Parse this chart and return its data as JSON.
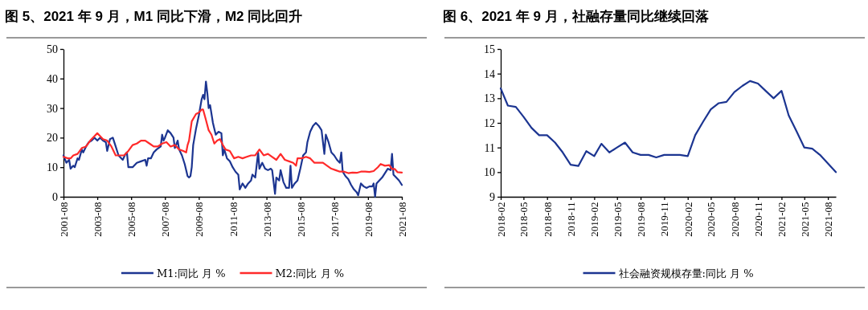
{
  "chart_data": [
    {
      "type": "line",
      "title": "图 5、2021 年 9 月，M1 同比下滑，M2 同比回升",
      "legend": "bottom",
      "grid": false,
      "marker": "none",
      "line_style": "solid",
      "xlim": [
        "2001-08",
        "2021-08"
      ],
      "xticks": [
        "2001-08",
        "2003-08",
        "2005-08",
        "2007-08",
        "2009-08",
        "2011-08",
        "2013-08",
        "2015-08",
        "2017-08",
        "2019-08",
        "2021-08"
      ],
      "ylim": [
        0,
        50
      ],
      "yticks": [
        0,
        10,
        20,
        30,
        40,
        50
      ],
      "series": [
        {
          "name": "M1:同比 月 %",
          "color": "#1c3591",
          "x": [
            "2001-08",
            "2001-10",
            "2001-12",
            "2002-01",
            "2002-03",
            "2002-04",
            "2002-06",
            "2002-07",
            "2002-09",
            "2002-10",
            "2002-12",
            "2003-02",
            "2003-04",
            "2003-06",
            "2003-08",
            "2003-10",
            "2003-12",
            "2004-02",
            "2004-03",
            "2004-05",
            "2004-07",
            "2004-09",
            "2004-11",
            "2005-01",
            "2005-02",
            "2005-04",
            "2005-05",
            "2005-06",
            "2005-09",
            "2005-12",
            "2006-03",
            "2006-06",
            "2006-07",
            "2006-08",
            "2006-10",
            "2006-12",
            "2007-02",
            "2007-05",
            "2007-06",
            "2007-07",
            "2007-08",
            "2007-10",
            "2007-12",
            "2008-02",
            "2008-03",
            "2008-05",
            "2008-06",
            "2008-08",
            "2008-10",
            "2008-12",
            "2009-01",
            "2009-02",
            "2009-03",
            "2009-04",
            "2009-06",
            "2009-08",
            "2009-10",
            "2009-11",
            "2009-12",
            "2010-01",
            "2010-02",
            "2010-03",
            "2010-04",
            "2010-06",
            "2010-08",
            "2010-10",
            "2010-12",
            "2011-01",
            "2011-02",
            "2011-04",
            "2011-06",
            "2011-08",
            "2011-10",
            "2011-12",
            "2012-01",
            "2012-03",
            "2012-05",
            "2012-07",
            "2012-09",
            "2012-10",
            "2012-12",
            "2013-02",
            "2013-03",
            "2013-05",
            "2013-07",
            "2013-09",
            "2013-11",
            "2013-12",
            "2014-02",
            "2014-03",
            "2014-05",
            "2014-06",
            "2014-08",
            "2014-10",
            "2014-12",
            "2015-01",
            "2015-02",
            "2015-04",
            "2015-06",
            "2015-08",
            "2015-10",
            "2015-12",
            "2016-01",
            "2016-03",
            "2016-05",
            "2016-07",
            "2016-09",
            "2016-11",
            "2017-01",
            "2017-02",
            "2017-04",
            "2017-06",
            "2017-08",
            "2017-10",
            "2017-12",
            "2018-01",
            "2018-02",
            "2018-04",
            "2018-06",
            "2018-08",
            "2018-10",
            "2018-12",
            "2019-01",
            "2019-03",
            "2019-05",
            "2019-07",
            "2019-09",
            "2019-11",
            "2019-12",
            "2020-01",
            "2020-02",
            "2020-04",
            "2020-06",
            "2020-08",
            "2020-10",
            "2020-12",
            "2021-01",
            "2021-02",
            "2021-04",
            "2021-06",
            "2021-08"
          ],
          "values": [
            14,
            11.5,
            12.5,
            9.5,
            10.5,
            10,
            13,
            12.5,
            16,
            15,
            17,
            18.5,
            19,
            20,
            19,
            20,
            19,
            18.5,
            15.5,
            19.5,
            20,
            17,
            14,
            13,
            12.5,
            14.5,
            15,
            10,
            10,
            11.5,
            12,
            12.5,
            10.5,
            13,
            13,
            15,
            16,
            17,
            21,
            19,
            20,
            22.5,
            21.5,
            20,
            16.5,
            19,
            16,
            14,
            11,
            7,
            6.5,
            7,
            10,
            17.5,
            23,
            27.5,
            33,
            34.5,
            33,
            39,
            35,
            30,
            31,
            25,
            21,
            22,
            21.5,
            14,
            16,
            13,
            12,
            10,
            8.5,
            7.5,
            2.5,
            4.5,
            3,
            4.5,
            5.5,
            7.5,
            6.5,
            15,
            9.5,
            11.5,
            9.5,
            9,
            9.5,
            9,
            1,
            6.5,
            5.5,
            9,
            5,
            3,
            3,
            10.5,
            3,
            4.5,
            5.5,
            9.5,
            14,
            15,
            18.5,
            22,
            24,
            25,
            24,
            22.5,
            14.5,
            21,
            18.5,
            15,
            14,
            12.5,
            11.5,
            15,
            8.5,
            7,
            6,
            4,
            2.5,
            1.5,
            0.5,
            4.5,
            3.5,
            3,
            3.5,
            3.5,
            4.5,
            0,
            4.5,
            5.5,
            6.5,
            8,
            9.5,
            9,
            14.5,
            7.5,
            6.5,
            5.5,
            4
          ]
        },
        {
          "name": "M2:同比 月 %",
          "color": "#ff2a2a",
          "x": [
            "2001-08",
            "2001-11",
            "2002-01",
            "2002-03",
            "2002-06",
            "2002-09",
            "2002-12",
            "2003-03",
            "2003-06",
            "2003-08",
            "2003-10",
            "2003-12",
            "2004-03",
            "2004-06",
            "2004-09",
            "2004-12",
            "2005-03",
            "2005-06",
            "2005-09",
            "2005-12",
            "2006-03",
            "2006-06",
            "2006-09",
            "2006-12",
            "2007-03",
            "2007-06",
            "2007-09",
            "2007-12",
            "2008-03",
            "2008-06",
            "2008-09",
            "2008-11",
            "2008-12",
            "2009-01",
            "2009-03",
            "2009-06",
            "2009-08",
            "2009-10",
            "2009-11",
            "2010-01",
            "2010-03",
            "2010-05",
            "2010-07",
            "2010-09",
            "2010-11",
            "2011-01",
            "2011-03",
            "2011-06",
            "2011-09",
            "2011-12",
            "2012-03",
            "2012-06",
            "2012-09",
            "2012-12",
            "2013-03",
            "2013-06",
            "2013-09",
            "2013-12",
            "2014-03",
            "2014-06",
            "2014-09",
            "2014-12",
            "2015-03",
            "2015-05",
            "2015-06",
            "2015-09",
            "2015-12",
            "2016-03",
            "2016-06",
            "2016-08",
            "2016-10",
            "2016-12",
            "2017-03",
            "2017-06",
            "2017-09",
            "2017-12",
            "2018-03",
            "2018-06",
            "2018-09",
            "2018-12",
            "2019-03",
            "2019-06",
            "2019-09",
            "2019-12",
            "2020-03",
            "2020-05",
            "2020-08",
            "2020-11",
            "2021-01",
            "2021-03",
            "2021-05",
            "2021-08"
          ],
          "values": [
            13.5,
            13,
            13,
            14,
            14.5,
            16.5,
            17,
            19,
            20.5,
            21.5,
            20.5,
            19.5,
            19,
            17,
            14,
            14,
            14,
            15.5,
            17.5,
            18,
            19,
            19,
            18,
            17,
            17,
            18,
            18.5,
            17,
            17.5,
            16,
            15.5,
            15,
            17.5,
            19,
            25.5,
            28,
            28.5,
            29.5,
            29.5,
            26,
            22.5,
            21,
            18,
            19,
            19.5,
            17.5,
            16,
            15.5,
            13,
            13.5,
            13,
            13.5,
            14,
            14,
            16,
            14,
            14.5,
            13.5,
            12.5,
            14.5,
            12.5,
            12,
            11.5,
            10.5,
            13,
            13,
            13.5,
            13,
            11.5,
            11.5,
            11.5,
            11.5,
            10.5,
            9.5,
            9,
            8.5,
            8.5,
            8,
            8.2,
            8.1,
            8.5,
            8.5,
            8.4,
            8.7,
            10,
            11.1,
            10.5,
            10.7,
            9.4,
            9.4,
            8.3,
            8.2
          ]
        }
      ]
    },
    {
      "type": "line",
      "title": "图 6、2021 年 9 月，社融存量同比继续回落",
      "legend": "bottom",
      "grid": false,
      "marker": "none",
      "line_style": "solid",
      "xlim": [
        "2018-02",
        "2021-09"
      ],
      "xticks": [
        "2018-02",
        "2018-05",
        "2018-08",
        "2018-11",
        "2019-02",
        "2019-05",
        "2019-08",
        "2019-11",
        "2020-02",
        "2020-05",
        "2020-08",
        "2020-11",
        "2021-02",
        "2021-05",
        "2021-08"
      ],
      "ylim": [
        9,
        15
      ],
      "yticks": [
        9,
        10,
        11,
        12,
        13,
        14,
        15
      ],
      "x": [
        "2018-02",
        "2018-03",
        "2018-04",
        "2018-05",
        "2018-06",
        "2018-07",
        "2018-08",
        "2018-09",
        "2018-10",
        "2018-11",
        "2018-12",
        "2019-01",
        "2019-02",
        "2019-03",
        "2019-04",
        "2019-05",
        "2019-06",
        "2019-07",
        "2019-08",
        "2019-09",
        "2019-10",
        "2019-11",
        "2019-12",
        "2020-01",
        "2020-02",
        "2020-03",
        "2020-04",
        "2020-05",
        "2020-06",
        "2020-07",
        "2020-08",
        "2020-09",
        "2020-10",
        "2020-11",
        "2020-12",
        "2021-01",
        "2021-02",
        "2021-03",
        "2021-04",
        "2021-05",
        "2021-06",
        "2021-07",
        "2021-08",
        "2021-09"
      ],
      "series": [
        {
          "name": "社会融资规模存量:同比 月 %",
          "color": "#1c3591",
          "values": [
            13.4,
            12.7,
            12.65,
            12.25,
            11.8,
            11.5,
            11.5,
            11.2,
            10.8,
            10.3,
            10.25,
            10.85,
            10.65,
            11.15,
            10.8,
            11.0,
            11.2,
            10.8,
            10.7,
            10.7,
            10.6,
            10.7,
            10.7,
            10.7,
            10.65,
            11.5,
            12.05,
            12.55,
            12.8,
            12.85,
            13.25,
            13.5,
            13.7,
            13.6,
            13.3,
            13.0,
            13.3,
            12.3,
            11.65,
            11.0,
            10.95,
            10.7,
            10.35,
            10.0
          ]
        }
      ]
    }
  ]
}
